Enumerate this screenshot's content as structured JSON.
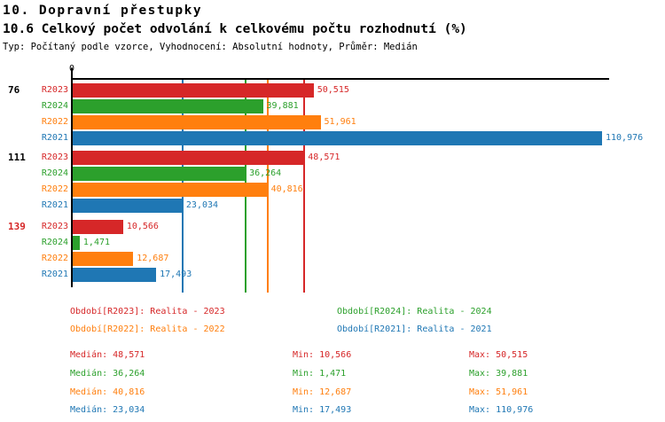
{
  "header": {
    "title": "10. Dopravní přestupky",
    "subtitle": "10.6 Celkový počet odvolání k celkovému počtu rozhodnutí (%)",
    "meta": "Typ: Počítaný podle vzorce, Vyhodnocení: Absolutní hodnoty, Průměr: Medián"
  },
  "colors": {
    "R2023": "#d62728",
    "R2024": "#2ca02c",
    "R2022": "#ff7f0e",
    "R2021": "#1f77b4",
    "group_label_default": "#000000",
    "group_label_alert": "#d62728",
    "axis": "#000000"
  },
  "chart_data": {
    "type": "bar",
    "orientation": "horizontal",
    "title": "10.6 Celkový počet odvolání k celkovému počtu rozhodnutí (%)",
    "value_unit": "%",
    "x_axis": {
      "origin_label": "0",
      "min": 0,
      "max": 110.976,
      "gridlines": "median markers only"
    },
    "series_order": [
      "R2023",
      "R2024",
      "R2022",
      "R2021"
    ],
    "groups": [
      {
        "label": "76",
        "bars": [
          {
            "year": "R2023",
            "value": 50.515,
            "display": "50,515"
          },
          {
            "year": "R2024",
            "value": 39.881,
            "display": "39,881"
          },
          {
            "year": "R2022",
            "value": 51.961,
            "display": "51,961"
          },
          {
            "year": "R2021",
            "value": 110.976,
            "display": "110,976"
          }
        ]
      },
      {
        "label": "111",
        "bars": [
          {
            "year": "R2023",
            "value": 48.571,
            "display": "48,571"
          },
          {
            "year": "R2024",
            "value": 36.264,
            "display": "36,264"
          },
          {
            "year": "R2022",
            "value": 40.816,
            "display": "40,816"
          },
          {
            "year": "R2021",
            "value": 23.034,
            "display": "23,034"
          }
        ]
      },
      {
        "label": "139",
        "bars": [
          {
            "year": "R2023",
            "value": 10.566,
            "display": "10,566"
          },
          {
            "year": "R2024",
            "value": 1.471,
            "display": "1,471"
          },
          {
            "year": "R2022",
            "value": 12.687,
            "display": "12,687"
          },
          {
            "year": "R2021",
            "value": 17.493,
            "display": "17,493"
          }
        ]
      }
    ],
    "median_lines": [
      {
        "series": "R2023",
        "value": 48.571
      },
      {
        "series": "R2024",
        "value": 36.264
      },
      {
        "series": "R2022",
        "value": 40.816
      },
      {
        "series": "R2021",
        "value": 23.034
      }
    ]
  },
  "legend": {
    "items": [
      {
        "series": "R2023",
        "text": "Období[R2023]: Realita - 2023"
      },
      {
        "series": "R2024",
        "text": "Období[R2024]: Realita - 2024"
      },
      {
        "series": "R2022",
        "text": "Období[R2022]: Realita - 2022"
      },
      {
        "series": "R2021",
        "text": "Období[R2021]: Realita - 2021"
      }
    ]
  },
  "stats": {
    "rows": [
      {
        "series": "R2023",
        "median": "Medián: 48,571",
        "min": "Min: 10,566",
        "max": "Max: 50,515"
      },
      {
        "series": "R2024",
        "median": "Medián: 36,264",
        "min": "Min: 1,471",
        "max": "Max: 39,881"
      },
      {
        "series": "R2022",
        "median": "Medián: 40,816",
        "min": "Min: 12,687",
        "max": "Max: 51,961"
      },
      {
        "series": "R2021",
        "median": "Medián: 23,034",
        "min": "Min: 17,493",
        "max": "Max: 110,976"
      }
    ]
  }
}
